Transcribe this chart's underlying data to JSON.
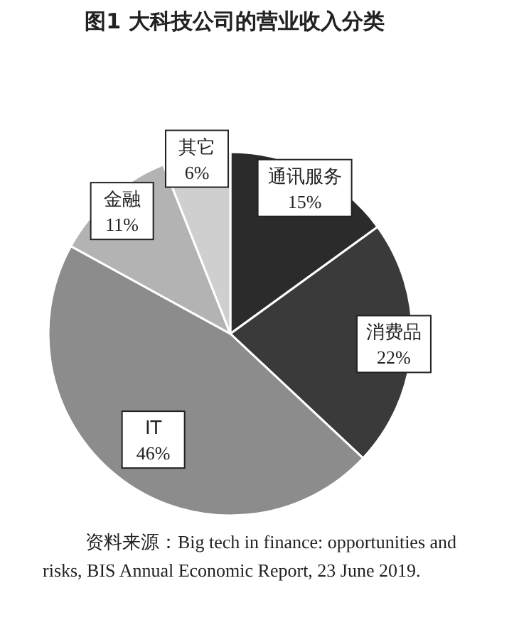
{
  "chart_data": {
    "type": "pie",
    "title": "图1 大科技公司的营业收入分类",
    "categories": [
      "通讯服务",
      "消费品",
      "IT",
      "金融",
      "其它"
    ],
    "values": [
      15,
      22,
      46,
      11,
      6
    ],
    "colors": [
      "#2b2b2b",
      "#3a3a3a",
      "#8c8c8c",
      "#b3b3b3",
      "#cfcfcf"
    ],
    "value_labels": [
      "15%",
      "22%",
      "46%",
      "11%",
      "6%"
    ],
    "annotations": [
      "资料来源：Big tech in finance: opportunities and risks, BIS Annual Economic Report, 23 June 2019."
    ]
  }
}
